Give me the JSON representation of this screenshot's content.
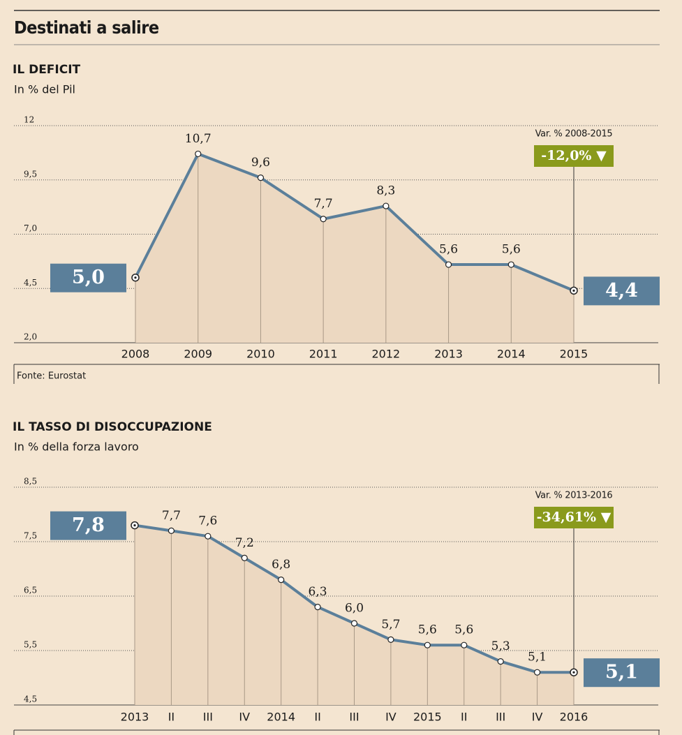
{
  "title": "Destinati a salire",
  "chart_data": [
    {
      "type": "line",
      "title": "IL DEFICIT",
      "subtitle": "In % del Pil",
      "categories": [
        "2008",
        "2009",
        "2010",
        "2011",
        "2012",
        "2013",
        "2014",
        "2015"
      ],
      "values": [
        5.0,
        10.7,
        9.6,
        7.7,
        8.3,
        5.6,
        5.6,
        4.4
      ],
      "value_labels": [
        "5,0",
        "10,7",
        "9,6",
        "7,7",
        "8,3",
        "5,6",
        "5,6",
        "4,4"
      ],
      "ylim": [
        2.0,
        12
      ],
      "yticks": [
        {
          "value": 2.0,
          "label": "2,0"
        },
        {
          "value": 4.5,
          "label": "4,5"
        },
        {
          "value": 7.0,
          "label": "7,0"
        },
        {
          "value": 9.5,
          "label": "9,5"
        },
        12
      ],
      "grid": true,
      "color": "#5b7f9a",
      "area_color": "#ecd8c1",
      "highlight_color": "#8a9a1c",
      "annotation": "Var. % 2008-2015",
      "change_label": "-12,0% ▼",
      "source": "Fonte: Eurostat"
    },
    {
      "type": "line",
      "title": "IL TASSO DI DISOCCUPAZIONE",
      "subtitle": "In % della forza lavoro",
      "categories": [
        "2013",
        "II",
        "III",
        "IV",
        "2014",
        "II",
        "III",
        "IV",
        "2015",
        "II",
        "III",
        "IV",
        "2016"
      ],
      "values": [
        7.8,
        7.7,
        7.6,
        7.2,
        6.8,
        6.3,
        6.0,
        5.7,
        5.6,
        5.6,
        5.3,
        5.1,
        5.1
      ],
      "value_labels": [
        "7,8",
        "7,7",
        "7,6",
        "7,2",
        "6,8",
        "6,3",
        "6,0",
        "5,7",
        "5,6",
        "5,6",
        "5,3",
        "5,1",
        "5,1"
      ],
      "ylim": [
        4.5,
        8.5
      ],
      "yticks": [
        {
          "value": 4.5,
          "label": "4,5"
        },
        {
          "value": 5.5,
          "label": "5,5"
        },
        {
          "value": 6.5,
          "label": "6,5"
        },
        {
          "value": 7.5,
          "label": "7,5"
        },
        {
          "value": 8.5,
          "label": "8,5"
        }
      ],
      "grid": true,
      "color": "#5b7f9a",
      "area_color": "#ecd8c1",
      "highlight_color": "#8a9a1c",
      "annotation": "Var. % 2013-2016",
      "change_label": "-34,61% ▼"
    }
  ]
}
